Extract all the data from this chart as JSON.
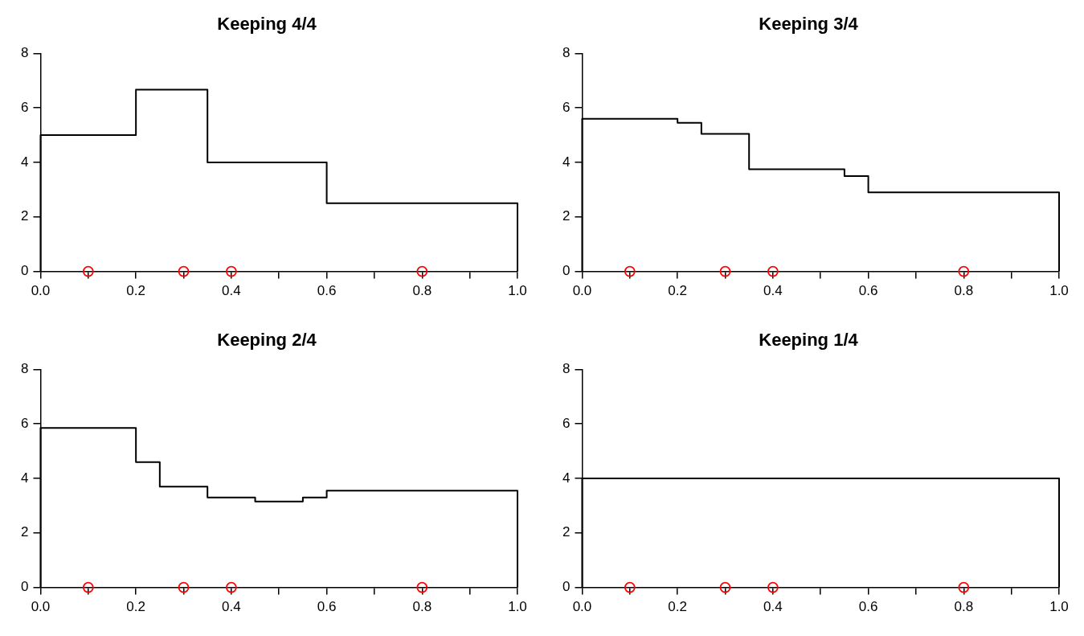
{
  "chart_data": [
    {
      "type": "step",
      "title": "Keeping 4/4",
      "xlim": [
        0,
        1
      ],
      "ylim": [
        0,
        8
      ],
      "grid": false,
      "legend": false,
      "xticks": [
        {
          "value": 0,
          "label": "0.0"
        },
        {
          "value": 0.1,
          "label": null
        },
        0.2,
        {
          "value": 0.3,
          "label": null
        },
        0.4,
        {
          "value": 0.5,
          "label": null
        },
        0.6,
        {
          "value": 0.7,
          "label": null
        },
        0.8,
        {
          "value": 0.9,
          "label": null
        },
        {
          "value": 1,
          "label": "1.0"
        }
      ],
      "yticks": [
        0,
        2,
        4,
        6,
        8
      ],
      "series": [
        {
          "color": "#000000",
          "x": [
            0,
            0,
            0.2,
            0.35,
            0.6,
            1
          ],
          "values": [
            0,
            5,
            6.67,
            4,
            2.5,
            0
          ]
        },
        {
          "type": "scatter",
          "color": "#ff0000",
          "marker": "circle",
          "x": [
            0.1,
            0.3,
            0.4,
            0.8
          ],
          "values": [
            0,
            0,
            0,
            0
          ]
        }
      ]
    },
    {
      "type": "step",
      "title": "Keeping 3/4",
      "xlim": [
        0,
        1
      ],
      "ylim": [
        0,
        8
      ],
      "grid": false,
      "legend": false,
      "xticks": [
        {
          "value": 0,
          "label": "0.0"
        },
        {
          "value": 0.1,
          "label": null
        },
        0.2,
        {
          "value": 0.3,
          "label": null
        },
        0.4,
        {
          "value": 0.5,
          "label": null
        },
        0.6,
        {
          "value": 0.7,
          "label": null
        },
        0.8,
        {
          "value": 0.9,
          "label": null
        },
        {
          "value": 1,
          "label": "1.0"
        }
      ],
      "yticks": [
        0,
        2,
        4,
        6,
        8
      ],
      "series": [
        {
          "color": "#000000",
          "x": [
            0,
            0,
            0.2,
            0.25,
            0.35,
            0.55,
            0.6,
            1
          ],
          "values": [
            0,
            5.6,
            5.45,
            5.05,
            3.75,
            3.5,
            2.9,
            0
          ]
        },
        {
          "type": "scatter",
          "color": "#ff0000",
          "marker": "circle",
          "x": [
            0.1,
            0.3,
            0.4,
            0.8
          ],
          "values": [
            0,
            0,
            0,
            0
          ]
        }
      ]
    },
    {
      "type": "step",
      "title": "Keeping 2/4",
      "xlim": [
        0,
        1
      ],
      "ylim": [
        0,
        8
      ],
      "grid": false,
      "legend": false,
      "xticks": [
        {
          "value": 0,
          "label": "0.0"
        },
        {
          "value": 0.1,
          "label": null
        },
        0.2,
        {
          "value": 0.3,
          "label": null
        },
        0.4,
        {
          "value": 0.5,
          "label": null
        },
        0.6,
        {
          "value": 0.7,
          "label": null
        },
        0.8,
        {
          "value": 0.9,
          "label": null
        },
        {
          "value": 1,
          "label": "1.0"
        }
      ],
      "yticks": [
        0,
        2,
        4,
        6,
        8
      ],
      "series": [
        {
          "color": "#000000",
          "x": [
            0,
            0,
            0.2,
            0.25,
            0.35,
            0.45,
            0.55,
            0.6,
            1
          ],
          "values": [
            0,
            5.85,
            4.6,
            3.7,
            3.3,
            3.15,
            3.3,
            3.55,
            0
          ]
        },
        {
          "type": "scatter",
          "color": "#ff0000",
          "marker": "circle",
          "x": [
            0.1,
            0.3,
            0.4,
            0.8
          ],
          "values": [
            0,
            0,
            0,
            0
          ]
        }
      ]
    },
    {
      "type": "step",
      "title": "Keeping 1/4",
      "xlim": [
        0,
        1
      ],
      "ylim": [
        0,
        8
      ],
      "grid": false,
      "legend": false,
      "xticks": [
        {
          "value": 0,
          "label": "0.0"
        },
        {
          "value": 0.1,
          "label": null
        },
        0.2,
        {
          "value": 0.3,
          "label": null
        },
        0.4,
        {
          "value": 0.5,
          "label": null
        },
        0.6,
        {
          "value": 0.7,
          "label": null
        },
        0.8,
        {
          "value": 0.9,
          "label": null
        },
        {
          "value": 1,
          "label": "1.0"
        }
      ],
      "yticks": [
        0,
        2,
        4,
        6,
        8
      ],
      "series": [
        {
          "color": "#000000",
          "x": [
            0,
            0,
            1
          ],
          "values": [
            0,
            4,
            0
          ]
        },
        {
          "type": "scatter",
          "color": "#ff0000",
          "marker": "circle",
          "x": [
            0.1,
            0.3,
            0.4,
            0.8
          ],
          "values": [
            0,
            0,
            0,
            0
          ]
        }
      ]
    }
  ]
}
